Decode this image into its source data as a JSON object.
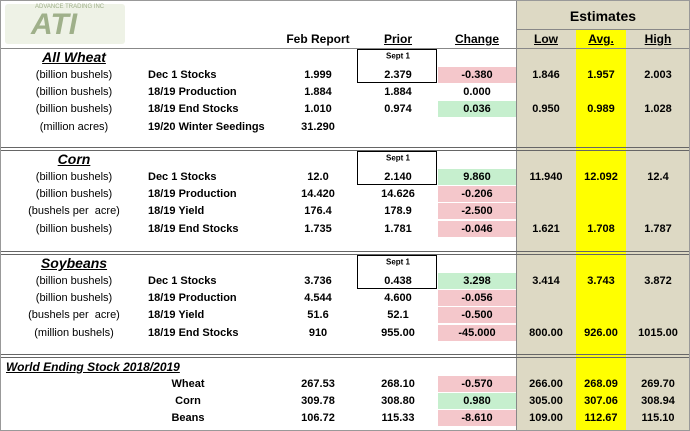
{
  "logo": {
    "text": "ATI",
    "subtitle": "ADVANCE TRADING INC"
  },
  "columns": {
    "feb": "Feb Report",
    "prior": "Prior",
    "change": "Change",
    "estimates": "Estimates",
    "low": "Low",
    "avg": "Avg.",
    "high": "High"
  },
  "sections": [
    {
      "title": "All Wheat",
      "rows": [
        {
          "unit": "(billion bushels)",
          "item": "Dec 1 Stocks",
          "feb": "1.999",
          "prior_note": "Sept 1",
          "prior": "2.379",
          "change": "-0.380",
          "low": "1.846",
          "avg": "1.957",
          "high": "2.003"
        },
        {
          "unit": "(billion bushels)",
          "item": "18/19 Production",
          "feb": "1.884",
          "prior": "1.884",
          "change": "0.000"
        },
        {
          "unit": "(billion bushels)",
          "item": "18/19 End Stocks",
          "feb": "1.010",
          "prior": "0.974",
          "change": "0.036",
          "low": "0.950",
          "avg": "0.989",
          "high": "1.028"
        },
        {
          "unit": "(million acres)",
          "item": "19/20 Winter Seedings",
          "feb": "31.290"
        }
      ]
    },
    {
      "title": "Corn",
      "rows": [
        {
          "unit": "(billion bushels)",
          "item": "Dec 1 Stocks",
          "feb": "12.0",
          "prior_note": "Sept 1",
          "prior": "2.140",
          "change": "9.860",
          "low": "11.940",
          "avg": "12.092",
          "high": "12.4"
        },
        {
          "unit": "(billion bushels)",
          "item": "18/19 Production",
          "feb": "14.420",
          "prior": "14.626",
          "change": "-0.206"
        },
        {
          "unit": "(bushels per  acre)",
          "item": "18/19 Yield",
          "feb": "176.4",
          "prior": "178.9",
          "change": "-2.500"
        },
        {
          "unit": "(billion bushels)",
          "item": "18/19 End Stocks",
          "feb": "1.735",
          "prior": "1.781",
          "change": "-0.046",
          "low": "1.621",
          "avg": "1.708",
          "high": "1.787"
        }
      ]
    },
    {
      "title": "Soybeans",
      "rows": [
        {
          "unit": "(billion bushels)",
          "item": "Dec 1 Stocks",
          "feb": "3.736",
          "prior_note": "Sept 1",
          "prior": "0.438",
          "change": "3.298",
          "low": "3.414",
          "avg": "3.743",
          "high": "3.872"
        },
        {
          "unit": "(billion bushels)",
          "item": "18/19 Production",
          "feb": "4.544",
          "prior": "4.600",
          "change": "-0.056"
        },
        {
          "unit": "(bushels per  acre)",
          "item": "18/19 Yield",
          "feb": "51.6",
          "prior": "52.1",
          "change": "-0.500"
        },
        {
          "unit": "(million bushels)",
          "item": "18/19 End Stocks",
          "feb": "910",
          "prior": "955.00",
          "change": "-45.000",
          "low": "800.00",
          "avg": "926.00",
          "high": "1015.00"
        }
      ]
    },
    {
      "title": "World Ending Stock 2018/2019",
      "rows": [
        {
          "item": "Wheat",
          "feb": "267.53",
          "prior": "268.10",
          "change": "-0.570",
          "low": "266.00",
          "avg": "268.09",
          "high": "269.70"
        },
        {
          "item": "Corn",
          "feb": "309.78",
          "prior": "308.80",
          "change": "0.980",
          "low": "305.00",
          "avg": "307.06",
          "high": "308.94"
        },
        {
          "item": "Beans",
          "feb": "106.72",
          "prior": "115.33",
          "change": "-8.610",
          "low": "109.00",
          "avg": "112.67",
          "high": "115.10"
        }
      ]
    }
  ]
}
